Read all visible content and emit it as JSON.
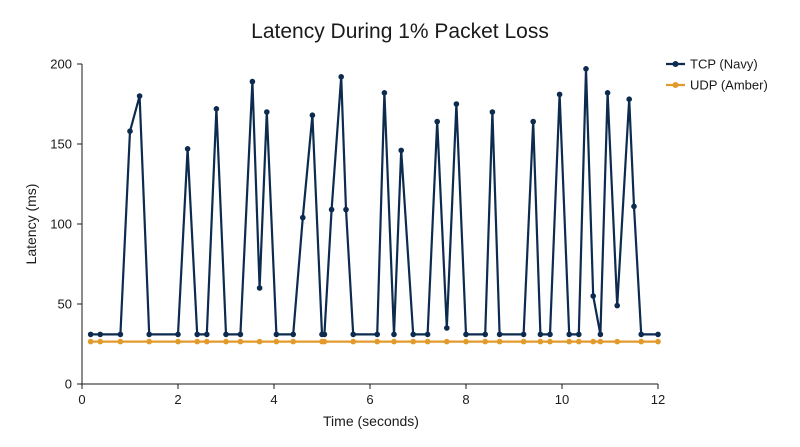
{
  "chart_data": {
    "type": "line",
    "title": "Latency During 1% Packet Loss",
    "xlabel": "Time (seconds)",
    "ylabel": "Latency (ms)",
    "xlim": [
      0,
      12
    ],
    "ylim": [
      0,
      200
    ],
    "xticks": [
      0,
      2,
      4,
      6,
      8,
      10,
      12
    ],
    "yticks": [
      0,
      50,
      100,
      150,
      200
    ],
    "grid": false,
    "legend": "top-right",
    "series": [
      {
        "name": "TCP (Navy)",
        "color": "#0d2a4f",
        "x": [
          0.18,
          0.38,
          0.8,
          1.0,
          1.2,
          1.4,
          2.0,
          2.2,
          2.4,
          2.6,
          2.8,
          3.0,
          3.3,
          3.55,
          3.7,
          3.85,
          4.05,
          4.4,
          4.6,
          4.8,
          5.0,
          5.05,
          5.2,
          5.4,
          5.5,
          5.65,
          6.15,
          6.3,
          6.5,
          6.65,
          6.9,
          7.2,
          7.4,
          7.6,
          7.8,
          8.0,
          8.4,
          8.55,
          8.7,
          9.2,
          9.4,
          9.55,
          9.75,
          9.95,
          10.15,
          10.35,
          10.5,
          10.65,
          10.8,
          10.95,
          11.15,
          11.4,
          11.5,
          11.65,
          12.0
        ],
        "y": [
          31,
          31,
          31,
          158,
          180,
          31,
          31,
          147,
          31,
          31,
          172,
          31,
          31,
          189,
          60,
          170,
          31,
          31,
          104,
          168,
          31,
          31,
          109,
          192,
          109,
          31,
          31,
          182,
          31,
          146,
          31,
          31,
          164,
          35,
          175,
          31,
          31,
          170,
          31,
          31,
          164,
          31,
          31,
          181,
          31,
          31,
          197,
          55,
          31,
          182,
          49,
          178,
          111,
          31,
          31
        ]
      },
      {
        "name": "UDP (Amber)",
        "color": "#e39a2c",
        "x": [
          0.18,
          0.38,
          0.8,
          1.4,
          2.0,
          2.4,
          2.6,
          3.0,
          3.3,
          3.7,
          4.05,
          4.4,
          5.0,
          5.05,
          5.65,
          6.15,
          6.5,
          6.9,
          7.2,
          7.6,
          8.0,
          8.4,
          8.7,
          9.2,
          9.55,
          9.75,
          10.15,
          10.35,
          10.65,
          10.8,
          11.15,
          11.65,
          12.0
        ],
        "y": [
          26.5,
          26.5,
          26.5,
          26.5,
          26.5,
          26.5,
          26.5,
          26.5,
          26.5,
          26.5,
          26.5,
          26.5,
          26.5,
          26.5,
          26.5,
          26.5,
          26.5,
          26.5,
          26.5,
          26.5,
          26.5,
          26.5,
          26.5,
          26.5,
          26.5,
          26.5,
          26.5,
          26.5,
          26.5,
          26.5,
          26.5,
          26.5,
          26.5
        ]
      }
    ]
  }
}
